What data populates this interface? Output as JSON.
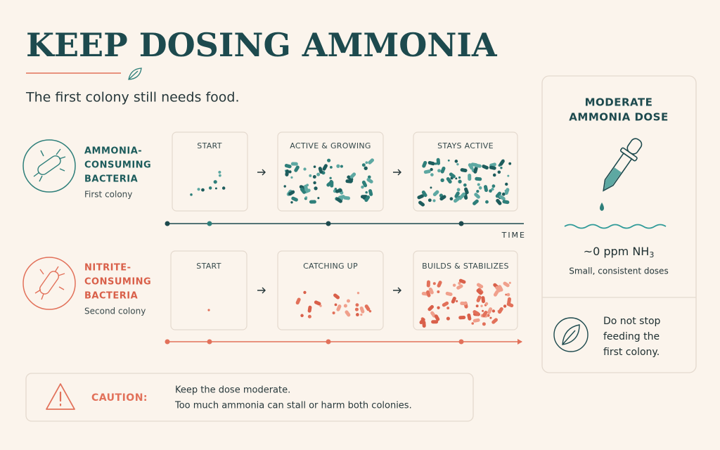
{
  "title": "KEEP DOSING AMMONIA",
  "subtitle": "The first colony still needs food.",
  "rows": [
    {
      "name_lines": [
        "AMMONIA-",
        "CONSUMING",
        "BACTERIA"
      ],
      "caption": "First colony",
      "stages": [
        "START",
        "ACTIVE & GROWING",
        "STAYS ACTIVE"
      ]
    },
    {
      "name_lines": [
        "NITRITE-",
        "CONSUMING",
        "BACTERIA"
      ],
      "caption": "Second colony",
      "stages": [
        "START",
        "CATCHING UP",
        "BUILDS & STABILIZES"
      ]
    }
  ],
  "time_label": "TIME",
  "panel": {
    "title_lines": [
      "MODERATE",
      "AMMONIA DOSE"
    ],
    "reading": {
      "text": "~0 ppm NH",
      "sub": "3"
    },
    "note": "Small, consistent doses",
    "tip_lines": [
      "Do not stop",
      "feeding the",
      "first colony."
    ]
  },
  "caution": {
    "label": "CAUTION:",
    "lines": [
      "Keep the dose moderate.",
      "Too much ammonia can stall or harm both colonies."
    ]
  }
}
